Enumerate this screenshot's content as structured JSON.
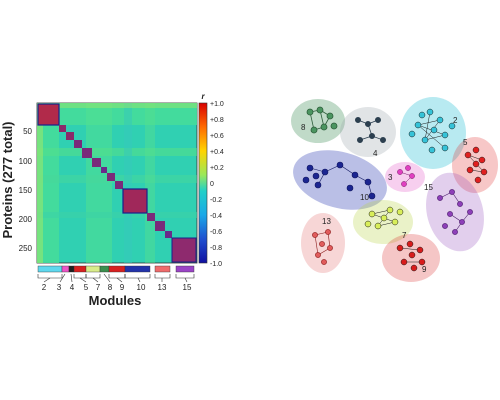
{
  "heatmap": {
    "ylabel": "Proteins (277 total)",
    "xlabel": "Modules",
    "yticks": [
      "50",
      "100",
      "150",
      "200",
      "250"
    ],
    "colorbar_title": "r",
    "colorbar_ticks": [
      "+1.0",
      "+0.8",
      "+0.6",
      "+0.4",
      "+0.2",
      "0",
      "-0.2",
      "-0.4",
      "-0.6",
      "-0.8",
      "-1.0"
    ],
    "module_ticks": [
      "2",
      "3",
      "4",
      "5",
      "7",
      "8",
      "9",
      "10",
      "13",
      "15"
    ]
  },
  "module_bar_colors": [
    "#5fd8ee",
    "#ee55c8",
    "#1f1f1f",
    "#d81f1f",
    "#d9ec8a",
    "#3b8f4e",
    "#d82020",
    "#2233aa",
    "#ef6b6b",
    "#9b44c6"
  ],
  "network_labels": [
    "8",
    "4",
    "2",
    "5",
    "10",
    "3",
    "15",
    "7",
    "13",
    "9"
  ],
  "network_colors": {
    "8": "#4b9560",
    "4": "#2c3f4f",
    "2": "#35c3d8",
    "5": "#e02020",
    "10": "#1b2590",
    "3": "#e040c0",
    "15": "#8d3fb8",
    "7": "#b8d44a",
    "13": "#e05b5b",
    "9": "#d81c1c"
  }
}
